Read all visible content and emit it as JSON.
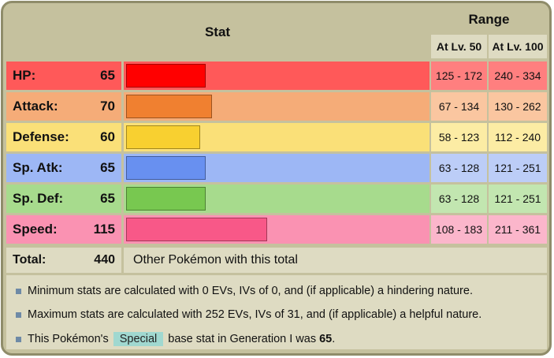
{
  "header": {
    "stat_label": "Stat",
    "range_label": "Range",
    "lv50_label": "At Lv. 50",
    "lv100_label": "At Lv. 100"
  },
  "stats": [
    {
      "name": "HP:",
      "value": "65",
      "lv50": "125 - 172",
      "lv100": "240 - 334",
      "bar_fraction": 0.2549,
      "row_color": "#ff5959",
      "bar_color": "#ff0000",
      "name_bg": "#ff5959",
      "range_bg": "#ff7f7f"
    },
    {
      "name": "Attack:",
      "value": "70",
      "lv50": "67 - 134",
      "lv100": "130 - 262",
      "bar_fraction": 0.2745,
      "row_color": "#f5ac78",
      "bar_color": "#f08030",
      "name_bg": "#f5ac78",
      "range_bg": "#fac6a0"
    },
    {
      "name": "Defense:",
      "value": "60",
      "lv50": "58 - 123",
      "lv100": "112 - 240",
      "bar_fraction": 0.2353,
      "row_color": "#fae078",
      "bar_color": "#f8d030",
      "name_bg": "#fae078",
      "range_bg": "#fceca4"
    },
    {
      "name": "Sp. Atk:",
      "value": "65",
      "lv50": "63 - 128",
      "lv100": "121 - 251",
      "bar_fraction": 0.2549,
      "row_color": "#9db7f5",
      "bar_color": "#6890f0",
      "name_bg": "#9db7f5",
      "range_bg": "#bccdf7"
    },
    {
      "name": "Sp. Def:",
      "value": "65",
      "lv50": "63 - 128",
      "lv100": "121 - 251",
      "bar_fraction": 0.2549,
      "row_color": "#a7db8d",
      "bar_color": "#78c850",
      "name_bg": "#a7db8d",
      "range_bg": "#c2e6b0"
    },
    {
      "name": "Speed:",
      "value": "115",
      "lv50": "108 - 183",
      "lv100": "211 - 361",
      "bar_fraction": 0.451,
      "row_color": "#fa92b2",
      "bar_color": "#f85888",
      "name_bg": "#fa92b2",
      "range_bg": "#fbb6cb"
    }
  ],
  "total": {
    "label": "Total:",
    "value": "440",
    "link": "Other Pokémon with this total"
  },
  "notes": {
    "min": "Minimum stats are calculated with 0 EVs, IVs of 0, and (if applicable) a hindering nature.",
    "max": "Maximum stats are calculated with 252 EVs, IVs of 31, and (if applicable) a helpful nature.",
    "special_prefix": "This Pokémon's",
    "special_tag": "Special",
    "special_suffix": "base stat in Generation I was",
    "special_value": "65",
    "special_end": "."
  }
}
